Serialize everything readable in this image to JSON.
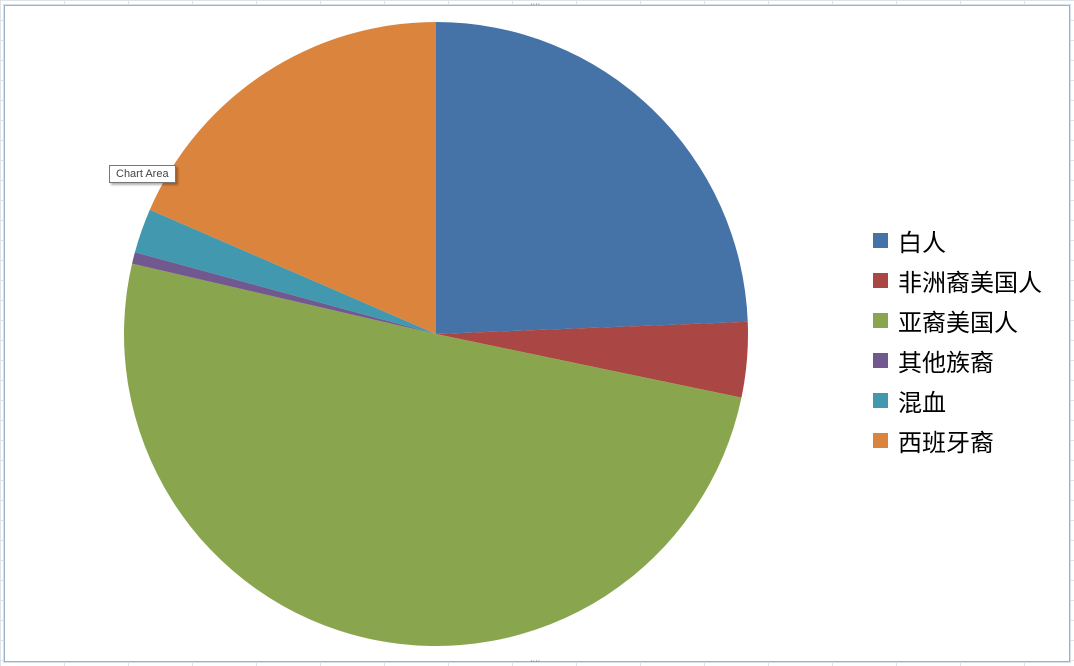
{
  "chart_data": {
    "type": "pie",
    "title": "",
    "categories": [
      "白人",
      "非洲裔美国人",
      "亚裔美国人",
      "其他族裔",
      "混血",
      "西班牙裔"
    ],
    "values": [
      24.4,
      3.9,
      50.4,
      0.6,
      2.3,
      18.5
    ],
    "colors": [
      "#4572a7",
      "#aa4643",
      "#89a54e",
      "#71588f",
      "#4198af",
      "#db843d"
    ],
    "legend_position": "right",
    "start_angle": "12 o'clock, clockwise"
  },
  "tooltip": {
    "text": "Chart Area"
  }
}
